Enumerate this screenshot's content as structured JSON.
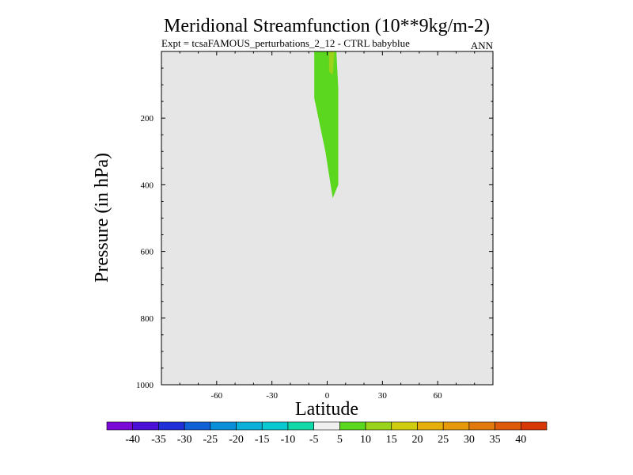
{
  "chart_data": {
    "type": "contour",
    "title": "Meridional Streamfunction (10**9kg/m-2)",
    "subtitle_left": "Expt = tcsaFAMOUS_perturbations_2_12 - CTRL babyblue",
    "subtitle_right": "ANN",
    "xlabel": "Latitude",
    "ylabel": "Pressure (in hPa)",
    "xlim": [
      -90,
      90
    ],
    "ylim": [
      1000,
      0
    ],
    "x_ticks": [
      -60,
      -30,
      0,
      30,
      60
    ],
    "y_ticks": [
      200,
      400,
      600,
      800,
      1000
    ],
    "background_color": "#e6e6e6",
    "regions": [
      {
        "name": "contour-5-to-10",
        "level_range": [
          5,
          10
        ],
        "color": "#5ad71e",
        "polygon": [
          [
            -7,
            0
          ],
          [
            5,
            0
          ],
          [
            6,
            110
          ],
          [
            6,
            400
          ],
          [
            3,
            440
          ],
          [
            -1,
            300
          ],
          [
            -7,
            140
          ]
        ]
      },
      {
        "name": "contour-10-to-15",
        "level_range": [
          10,
          15
        ],
        "color": "#9bd21a",
        "polygon": [
          [
            1,
            0
          ],
          [
            4,
            0
          ],
          [
            3,
            70
          ],
          [
            1,
            60
          ]
        ]
      }
    ],
    "colorbar": {
      "levels": [
        -45,
        -40,
        -35,
        -30,
        -25,
        -20,
        -15,
        -10,
        -5,
        5,
        10,
        15,
        20,
        25,
        30,
        35,
        40,
        45
      ],
      "labels": [
        "-40",
        "-35",
        "-30",
        "-25",
        "-20",
        "-15",
        "-10",
        "-5",
        "5",
        "10",
        "15",
        "20",
        "25",
        "30",
        "35",
        "40"
      ],
      "colors": [
        "#7a0ad8",
        "#4a10d8",
        "#2030d8",
        "#1060d8",
        "#0a90d8",
        "#0ab0d8",
        "#08c8d0",
        "#10d8a8",
        "#f0f0f0",
        "#5ad71e",
        "#9bd21a",
        "#d0cd10",
        "#e6b00a",
        "#e69a0a",
        "#e07a0a",
        "#dc5a0a",
        "#d83808"
      ]
    }
  }
}
